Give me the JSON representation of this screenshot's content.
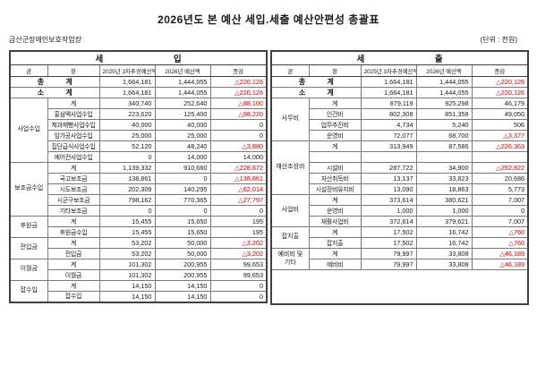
{
  "page": {
    "title": "2026년도 본 예산 세입.세출 예산안편성 총괄표",
    "org_name": "금산군장애인보호작업장",
    "unit_label": "(단위 : 천원)"
  },
  "colors": {
    "negative_red": "#e00000",
    "border_dark": "#404040",
    "border_light": "#7a7a7a"
  },
  "tables": [
    {
      "section_title": "세 입",
      "columns": [
        "관",
        "항",
        "2025년 3차추경예산액",
        "2026년 예산액",
        "증감"
      ],
      "summary_rows": [
        {
          "label": "총 계",
          "prev": "1,664,181",
          "curr": "1,444,055",
          "diff": "△220,126"
        },
        {
          "label": "소 계",
          "prev": "1,664,181",
          "curr": "1,444,055",
          "diff": "△220,126"
        }
      ],
      "groups": [
        {
          "name": "사업수입",
          "rows": [
            {
              "label": "계",
              "prev": "340,740",
              "curr": "252,640",
              "diff": "△88,100"
            },
            {
              "label": "홍삼액사업수입",
              "prev": "223,620",
              "curr": "125,400",
              "diff": "△98,220"
            },
            {
              "label": "제과제빵사업수입",
              "prev": "40,000",
              "curr": "40,000",
              "diff": "0"
            },
            {
              "label": "임가공사업수입",
              "prev": "25,000",
              "curr": "25,000",
              "diff": "0"
            },
            {
              "label": "집단급식사업수입",
              "prev": "52,120",
              "curr": "48,240",
              "diff": "△3,880"
            },
            {
              "label": "에어컨사업수입",
              "prev": "0",
              "curr": "14,000",
              "diff": "14,000"
            }
          ]
        },
        {
          "name": "보조금수입",
          "rows": [
            {
              "label": "계",
              "prev": "1,139,332",
              "curr": "910,660",
              "diff": "△228,672"
            },
            {
              "label": "국고보조금",
              "prev": "138,861",
              "curr": "0",
              "diff": "△138,861"
            },
            {
              "label": "시도보조금",
              "prev": "202,309",
              "curr": "140,295",
              "diff": "△62,014"
            },
            {
              "label": "시군구보조금",
              "prev": "798,162",
              "curr": "770,365",
              "diff": "△27,797"
            },
            {
              "label": "기타보조금",
              "prev": "0",
              "curr": "0",
              "diff": "0"
            }
          ]
        },
        {
          "name": "후원금",
          "rows": [
            {
              "label": "계",
              "prev": "15,455",
              "curr": "15,650",
              "diff": "195"
            },
            {
              "label": "후원금수입",
              "prev": "15,455",
              "curr": "15,650",
              "diff": "195"
            }
          ]
        },
        {
          "name": "전입금",
          "rows": [
            {
              "label": "계",
              "prev": "53,202",
              "curr": "50,000",
              "diff": "△3,202"
            },
            {
              "label": "전입금",
              "prev": "53,202",
              "curr": "50,000",
              "diff": "△3,202"
            }
          ]
        },
        {
          "name": "이월금",
          "rows": [
            {
              "label": "계",
              "prev": "101,302",
              "curr": "200,955",
              "diff": "99,653"
            },
            {
              "label": "이월금",
              "prev": "101,302",
              "curr": "200,955",
              "diff": "99,653"
            }
          ]
        },
        {
          "name": "잡수입",
          "rows": [
            {
              "label": "계",
              "prev": "14,150",
              "curr": "14,150",
              "diff": "0"
            },
            {
              "label": "잡수입",
              "prev": "14,150",
              "curr": "14,150",
              "diff": "0"
            }
          ]
        }
      ],
      "filler": false
    },
    {
      "section_title": "세 출",
      "columns": [
        "관",
        "항",
        "2025년 3차추경예산액",
        "2026년 예산액",
        "증감"
      ],
      "summary_rows": [
        {
          "label": "총 계",
          "prev": "1,664,181",
          "curr": "1,444,055",
          "diff": "△220,126"
        },
        {
          "label": "소 계",
          "prev": "1,664,181",
          "curr": "1,444,055",
          "diff": "△220,126"
        }
      ],
      "groups": [
        {
          "name": "사무비",
          "rows": [
            {
              "label": "계",
              "prev": "879,119",
              "curr": "925,298",
              "diff": "46,179"
            },
            {
              "label": "인건비",
              "prev": "802,308",
              "curr": "851,358",
              "diff": "49,050"
            },
            {
              "label": "업무추진비",
              "prev": "4,734",
              "curr": "5,240",
              "diff": "506"
            },
            {
              "label": "운영비",
              "prev": "72,077",
              "curr": "68,700",
              "diff": "△3,377"
            }
          ]
        },
        {
          "name": "재산조성비",
          "rows": [
            {
              "label": "계",
              "prev": "313,949",
              "curr": "87,586",
              "diff": "△226,363"
            },
            {
              "label": "",
              "prev": "",
              "curr": "",
              "diff": ""
            },
            {
              "label": "시설비",
              "prev": "287,722",
              "curr": "34,900",
              "diff": "△252,822"
            },
            {
              "label": "자산취득비",
              "prev": "13,137",
              "curr": "33,823",
              "diff": "20,686"
            },
            {
              "label": "시설장비유지비",
              "prev": "13,090",
              "curr": "18,863",
              "diff": "5,773"
            }
          ]
        },
        {
          "name": "사업비",
          "rows": [
            {
              "label": "계",
              "prev": "373,614",
              "curr": "380,621",
              "diff": "7,007"
            },
            {
              "label": "운영비",
              "prev": "1,000",
              "curr": "1,000",
              "diff": "0"
            },
            {
              "label": "재활사업비",
              "prev": "372,614",
              "curr": "379,621",
              "diff": "7,007"
            }
          ]
        },
        {
          "name": "잡지출",
          "rows": [
            {
              "label": "계",
              "prev": "17,502",
              "curr": "16,742",
              "diff": "△760"
            },
            {
              "label": "잡지출",
              "prev": "17,502",
              "curr": "16,742",
              "diff": "△760"
            }
          ]
        },
        {
          "name": "예비비 및 기타",
          "rows": [
            {
              "label": "계",
              "prev": "79,997",
              "curr": "33,808",
              "diff": "△46,189"
            },
            {
              "label": "예비비",
              "prev": "79,997",
              "curr": "33,808",
              "diff": "△46,189"
            }
          ]
        }
      ],
      "filler": true
    }
  ]
}
